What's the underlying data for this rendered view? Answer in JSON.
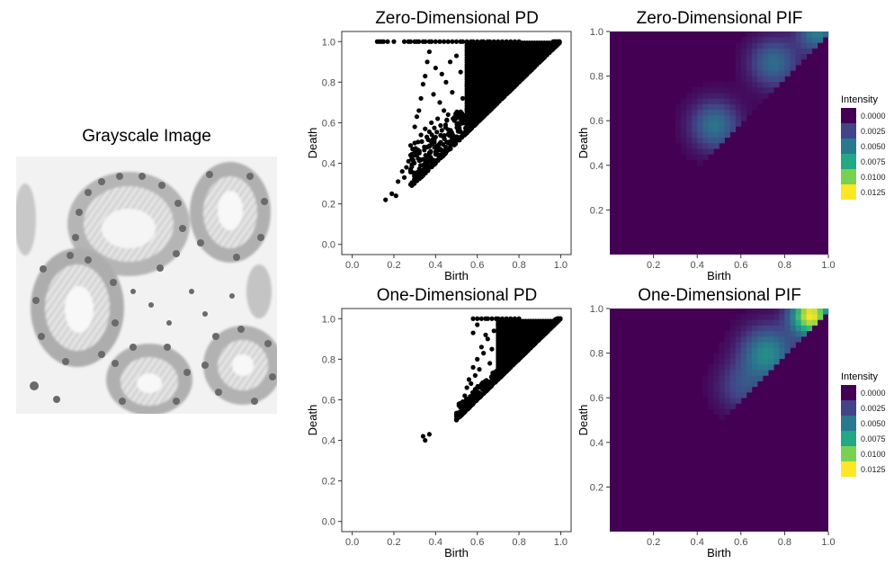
{
  "image_panel": {
    "title": "Grayscale Image"
  },
  "chart_data": [
    {
      "id": "pd0",
      "type": "scatter",
      "title": "Zero-Dimensional PD",
      "xlabel": "Birth",
      "ylabel": "Death",
      "xlim": [
        -0.05,
        1.05
      ],
      "ylim": [
        -0.05,
        1.05
      ],
      "xticks": [
        "0.0",
        "0.2",
        "0.4",
        "0.6",
        "0.8",
        "1.0"
      ],
      "yticks": [
        "0.0",
        "0.2",
        "0.4",
        "0.6",
        "0.8",
        "1.0"
      ],
      "grid": false,
      "outliers": [
        [
          0.16,
          0.22
        ],
        [
          0.19,
          0.25
        ],
        [
          0.21,
          0.24
        ],
        [
          0.25,
          0.33
        ],
        [
          0.26,
          0.38
        ],
        [
          0.27,
          0.41
        ],
        [
          0.28,
          0.44
        ],
        [
          0.3,
          0.5
        ],
        [
          0.3,
          0.58
        ],
        [
          0.31,
          0.63
        ],
        [
          0.32,
          0.66
        ],
        [
          0.33,
          0.72
        ],
        [
          0.34,
          0.79
        ],
        [
          0.35,
          0.83
        ],
        [
          0.36,
          0.9
        ],
        [
          0.37,
          0.95
        ],
        [
          0.4,
          0.87
        ],
        [
          0.42,
          0.7
        ],
        [
          0.45,
          0.8
        ],
        [
          0.47,
          0.9
        ],
        [
          0.5,
          0.93
        ],
        [
          0.52,
          0.85
        ],
        [
          0.55,
          0.78
        ],
        [
          0.57,
          0.97
        ],
        [
          0.6,
          0.88
        ],
        [
          0.62,
          0.92
        ],
        [
          0.38,
          0.6
        ],
        [
          0.41,
          0.62
        ],
        [
          0.44,
          0.66
        ],
        [
          0.33,
          0.54
        ],
        [
          0.35,
          0.57
        ],
        [
          0.39,
          0.74
        ],
        [
          0.43,
          0.84
        ],
        [
          0.48,
          0.75
        ],
        [
          0.53,
          0.72
        ],
        [
          0.58,
          0.82
        ],
        [
          0.46,
          0.64
        ],
        [
          0.36,
          0.48
        ],
        [
          0.29,
          0.47
        ],
        [
          0.24,
          0.36
        ],
        [
          0.22,
          0.31
        ]
      ],
      "top_row_x": [
        0.12,
        0.13,
        0.14,
        0.15,
        0.17,
        0.2,
        0.25,
        0.27,
        0.28,
        0.3,
        0.31,
        0.32,
        0.34,
        0.35,
        0.37,
        0.38,
        0.4,
        0.42,
        0.44,
        0.46,
        0.48,
        0.5,
        0.52,
        0.53,
        0.55,
        0.57,
        0.58,
        0.6,
        0.62,
        0.63,
        0.65,
        0.66,
        0.68,
        0.7,
        0.72,
        0.74,
        0.76,
        0.78,
        0.8
      ]
    },
    {
      "id": "pd1",
      "type": "scatter",
      "title": "One-Dimensional PD",
      "xlabel": "Birth",
      "ylabel": "Death",
      "xlim": [
        -0.05,
        1.05
      ],
      "ylim": [
        -0.05,
        1.05
      ],
      "xticks": [
        "0.0",
        "0.2",
        "0.4",
        "0.6",
        "0.8",
        "1.0"
      ],
      "yticks": [
        "0.0",
        "0.2",
        "0.4",
        "0.6",
        "0.8",
        "1.0"
      ],
      "grid": false,
      "outliers": [
        [
          0.34,
          0.42
        ],
        [
          0.35,
          0.4
        ],
        [
          0.37,
          0.43
        ],
        [
          0.5,
          0.5
        ],
        [
          0.51,
          0.53
        ],
        [
          0.52,
          0.56
        ],
        [
          0.53,
          0.59
        ],
        [
          0.54,
          0.62
        ],
        [
          0.55,
          0.66
        ],
        [
          0.56,
          0.7
        ],
        [
          0.58,
          0.76
        ],
        [
          0.6,
          0.8
        ],
        [
          0.62,
          0.86
        ],
        [
          0.65,
          0.9
        ],
        [
          0.68,
          0.94
        ],
        [
          0.7,
          0.97
        ],
        [
          0.58,
          0.93
        ],
        [
          0.6,
          0.97
        ],
        [
          0.63,
          0.83
        ],
        [
          0.66,
          0.78
        ],
        [
          0.57,
          0.68
        ],
        [
          0.59,
          0.72
        ],
        [
          0.61,
          0.75
        ],
        [
          0.55,
          0.6
        ],
        [
          0.64,
          0.92
        ],
        [
          0.67,
          0.85
        ],
        [
          0.72,
          0.88
        ],
        [
          0.75,
          0.95
        ]
      ],
      "top_row_x": [
        0.58,
        0.6,
        0.62,
        0.64,
        0.65,
        0.67,
        0.69,
        0.7,
        0.72,
        0.74,
        0.76,
        0.78,
        0.8
      ]
    },
    {
      "id": "pif0",
      "type": "heatmap",
      "title": "Zero-Dimensional PIF",
      "xlabel": "Birth",
      "ylabel": "Death",
      "xticks": [
        "0.2",
        "0.4",
        "0.6",
        "0.8",
        "1.0"
      ],
      "yticks": [
        "0.2",
        "0.4",
        "0.6",
        "0.8",
        "1.0"
      ],
      "legend_title": "Intensity",
      "legend_labels": [
        "0.0000",
        "0.0025",
        "0.0050",
        "0.0075",
        "0.0100",
        "0.0125"
      ],
      "legend_colors": [
        "#440154",
        "#414487",
        "#2a788e",
        "#22a884",
        "#7ad151",
        "#fde725"
      ],
      "legend_position": "right",
      "peaks": [
        [
          0.48,
          0.58,
          0.0052,
          0.006
        ],
        [
          0.75,
          0.86,
          0.0048,
          0.006
        ],
        [
          0.95,
          1.0,
          0.0058,
          0.004
        ]
      ]
    },
    {
      "id": "pif1",
      "type": "heatmap",
      "title": "One-Dimensional PIF",
      "xlabel": "Birth",
      "ylabel": "Death",
      "xticks": [
        "0.2",
        "0.4",
        "0.6",
        "0.8",
        "1.0"
      ],
      "yticks": [
        "0.2",
        "0.4",
        "0.6",
        "0.8",
        "1.0"
      ],
      "legend_title": "Intensity",
      "legend_labels": [
        "0.0000",
        "0.0025",
        "0.0050",
        "0.0075",
        "0.0100",
        "0.0125"
      ],
      "legend_colors": [
        "#440154",
        "#414487",
        "#2a788e",
        "#22a884",
        "#7ad151",
        "#fde725"
      ],
      "legend_position": "right",
      "peaks": [
        [
          0.92,
          0.97,
          0.0135,
          0.004
        ],
        [
          0.72,
          0.8,
          0.0065,
          0.007
        ],
        [
          0.6,
          0.65,
          0.003,
          0.006
        ]
      ]
    }
  ]
}
